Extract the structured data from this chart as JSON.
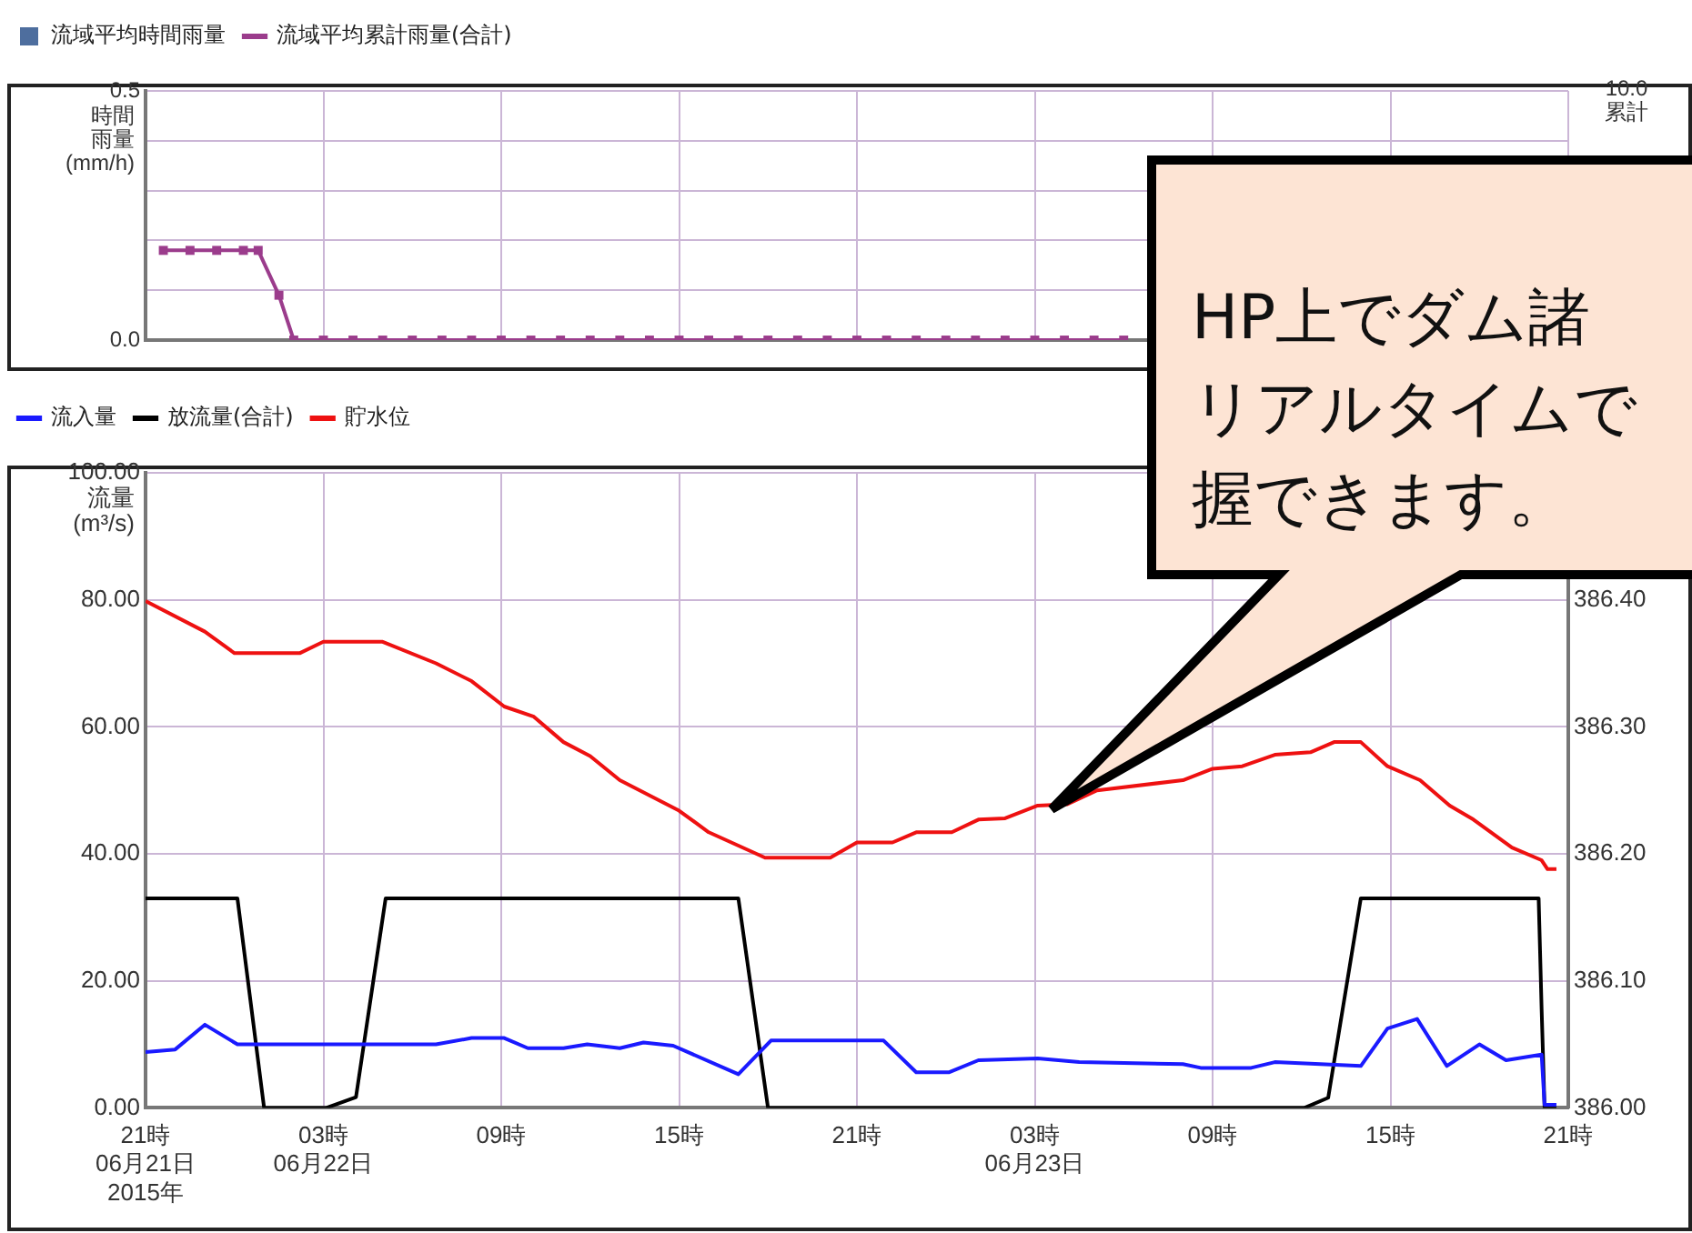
{
  "chart_data": [
    {
      "type": "line",
      "ylabel": "時間雨量(mm/h)",
      "legend": "top left",
      "grid": true,
      "tick_labels": "y",
      "marker": "square",
      "line_style": "solid",
      "annotations": [
        "10.0",
        "累計"
      ],
      "xlim": [
        "2015-06-21T21:00",
        "2015-06-23T21:00"
      ],
      "xticks": [
        {
          "value": "2015-06-21T21:00",
          "label": null
        },
        {
          "value": "2015-06-22T03:00",
          "label": null
        },
        {
          "value": "2015-06-22T09:00",
          "label": null
        },
        {
          "value": "2015-06-22T15:00",
          "label": null
        },
        {
          "value": "2015-06-22T21:00",
          "label": null
        },
        {
          "value": "2015-06-23T03:00",
          "label": null
        },
        {
          "value": "2015-06-23T09:00",
          "label": null
        },
        {
          "value": "2015-06-23T15:00",
          "label": null
        },
        {
          "value": "2015-06-23T21:00",
          "label": null
        }
      ],
      "ylim": [
        0,
        0.5
      ],
      "yticks": [
        {
          "value": 0,
          "label": "0.0"
        },
        {
          "value": 0.1,
          "label": null
        },
        {
          "value": 0.2,
          "label": null
        },
        {
          "value": 0.3,
          "label": null
        },
        {
          "value": 0.4,
          "label": null
        },
        {
          "value": 0.5,
          "label": "0.5"
        }
      ],
      "series": [
        {
          "name": "流域平均時間雨量",
          "type": "bar",
          "color": "#4e6e9e"
        },
        {
          "name": "流域平均累計雨量(合計)",
          "color": "#9b3c8c",
          "x": [
            "2015-06-21T21:36",
            "2015-06-21T22:30",
            "2015-06-21T23:24",
            "2015-06-22T00:18",
            "2015-06-22T00:48",
            "2015-06-22T01:30",
            "2015-06-22T02:00",
            "2015-06-22T03:00",
            "2015-06-22T04:00",
            "2015-06-22T05:00",
            "2015-06-22T06:00",
            "2015-06-22T07:00",
            "2015-06-22T08:00",
            "2015-06-22T09:00",
            "2015-06-22T10:00",
            "2015-06-22T11:00",
            "2015-06-22T12:00",
            "2015-06-22T13:00",
            "2015-06-22T14:00",
            "2015-06-22T15:00",
            "2015-06-22T16:00",
            "2015-06-22T17:00",
            "2015-06-22T18:00",
            "2015-06-22T19:00",
            "2015-06-22T20:00",
            "2015-06-22T21:00",
            "2015-06-22T22:00",
            "2015-06-22T23:00",
            "2015-06-23T00:00",
            "2015-06-23T01:00",
            "2015-06-23T02:00",
            "2015-06-23T03:00",
            "2015-06-23T04:00",
            "2015-06-23T05:00",
            "2015-06-23T06:00"
          ],
          "values": [
            0.18,
            0.18,
            0.18,
            0.18,
            0.18,
            0.09,
            0,
            0,
            0,
            0,
            0,
            0,
            0,
            0,
            0,
            0,
            0,
            0,
            0,
            0,
            0,
            0,
            0,
            0,
            0,
            0,
            0,
            0,
            0,
            0,
            0,
            0,
            0,
            0,
            0
          ]
        }
      ]
    },
    {
      "type": "line",
      "ylabel": "流量(m³/s)",
      "legend": "top left",
      "grid": true,
      "marker": "none",
      "line_style": "solid",
      "xlim": [
        "2015-06-21T21:00",
        "2015-06-23T21:00"
      ],
      "xticks": [
        {
          "value": "2015-06-21T21:00",
          "label": "21時\n06月21日\n2015年"
        },
        {
          "value": "2015-06-22T03:00",
          "label": "03時\n06月22日"
        },
        {
          "value": "2015-06-22T09:00",
          "label": "09時"
        },
        {
          "value": "2015-06-22T15:00",
          "label": "15時"
        },
        {
          "value": "2015-06-22T21:00",
          "label": "21時"
        },
        {
          "value": "2015-06-23T03:00",
          "label": "03時\n06月23日"
        },
        {
          "value": "2015-06-23T09:00",
          "label": "09時"
        },
        {
          "value": "2015-06-23T15:00",
          "label": "15時"
        },
        {
          "value": "2015-06-23T21:00",
          "label": "21時"
        }
      ],
      "ylim": [
        0,
        100
      ],
      "yticks": [
        {
          "value": 0,
          "label": "0.00"
        },
        {
          "value": 20,
          "label": "20.00"
        },
        {
          "value": 40,
          "label": "40.00"
        },
        {
          "value": 60,
          "label": "60.00"
        },
        {
          "value": 80,
          "label": "80.00"
        },
        {
          "value": 100,
          "label": "100.00"
        }
      ],
      "y2lim": [
        386.0,
        386.5
      ],
      "y2ticks": [
        {
          "value": 386.0,
          "label": "386.00"
        },
        {
          "value": 386.1,
          "label": "386.10"
        },
        {
          "value": 386.2,
          "label": "386.20"
        },
        {
          "value": 386.3,
          "label": "386.30"
        },
        {
          "value": 386.4,
          "label": "386.40"
        },
        {
          "value": 386.5,
          "label": null
        }
      ],
      "annotations": [
        "HP上でダム諸",
        "リアルタイムで",
        "握できます。"
      ],
      "series": [
        {
          "name": "流入量",
          "color": "#1a1aff",
          "x": [
            "2015-06-21T21:00",
            "2015-06-21T22:00",
            "2015-06-21T23:00",
            "2015-06-22T00:06",
            "2015-06-22T06:48",
            "2015-06-22T08:00",
            "2015-06-22T09:06",
            "2015-06-22T09:54",
            "2015-06-22T11:06",
            "2015-06-22T11:54",
            "2015-06-22T13:00",
            "2015-06-22T13:48",
            "2015-06-22T14:48",
            "2015-06-22T17:00",
            "2015-06-22T18:06",
            "2015-06-22T20:18",
            "2015-06-22T21:54",
            "2015-06-22T23:00",
            "2015-06-23T00:06",
            "2015-06-23T01:06",
            "2015-06-23T03:06",
            "2015-06-23T04:30",
            "2015-06-23T08:00",
            "2015-06-23T08:36",
            "2015-06-23T10:18",
            "2015-06-23T11:06",
            "2015-06-23T14:00",
            "2015-06-23T14:54",
            "2015-06-23T15:54",
            "2015-06-23T16:54",
            "2015-06-23T18:00",
            "2015-06-23T18:54",
            "2015-06-23T20:06",
            "2015-06-23T20:12",
            "2015-06-23T20:36"
          ],
          "values": [
            8.8,
            9.2,
            13.1,
            10,
            10,
            11,
            11,
            9.4,
            9.4,
            10,
            9.4,
            10.3,
            9.8,
            5.3,
            10.6,
            10.6,
            10.6,
            5.6,
            5.6,
            7.5,
            7.8,
            7.2,
            6.9,
            6.3,
            6.3,
            7.2,
            6.6,
            12.5,
            14,
            6.6,
            10,
            7.5,
            8.4,
            0.5,
            0.5
          ]
        },
        {
          "name": "放流量(合計)",
          "color": "#000000",
          "x": [
            "2015-06-21T21:00",
            "2015-06-22T00:06",
            "2015-06-22T01:00",
            "2015-06-22T03:06",
            "2015-06-22T04:06",
            "2015-06-22T05:06",
            "2015-06-22T17:00",
            "2015-06-22T18:00",
            "2015-06-23T12:06",
            "2015-06-23T12:54",
            "2015-06-23T14:00",
            "2015-06-23T20:00",
            "2015-06-23T20:06",
            "2015-06-23T20:12",
            "2015-06-23T20:36"
          ],
          "values": [
            33,
            33,
            0,
            0,
            1.7,
            33,
            33,
            0,
            0,
            1.6,
            33,
            33,
            15.6,
            0,
            0
          ]
        },
        {
          "name": "貯水位",
          "color": "#ee1111",
          "axis": "y2",
          "x": [
            "2015-06-21T21:00",
            "2015-06-21T23:00",
            "2015-06-22T00:00",
            "2015-06-22T02:12",
            "2015-06-22T03:00",
            "2015-06-22T05:00",
            "2015-06-22T06:48",
            "2015-06-22T08:00",
            "2015-06-22T09:06",
            "2015-06-22T10:06",
            "2015-06-22T11:06",
            "2015-06-22T12:00",
            "2015-06-22T13:00",
            "2015-06-22T15:00",
            "2015-06-22T16:00",
            "2015-06-22T17:54",
            "2015-06-22T20:06",
            "2015-06-22T21:00",
            "2015-06-22T22:12",
            "2015-06-22T23:00",
            "2015-06-23T00:12",
            "2015-06-23T01:06",
            "2015-06-23T02:00",
            "2015-06-23T03:06",
            "2015-06-23T04:06",
            "2015-06-23T05:06",
            "2015-06-23T08:00",
            "2015-06-23T09:00",
            "2015-06-23T10:00",
            "2015-06-23T11:06",
            "2015-06-23T12:18",
            "2015-06-23T13:06",
            "2015-06-23T14:00",
            "2015-06-23T14:54",
            "2015-06-23T16:00",
            "2015-06-23T17:00",
            "2015-06-23T17:48",
            "2015-06-23T19:06",
            "2015-06-23T20:06",
            "2015-06-23T20:18",
            "2015-06-23T20:36"
          ],
          "values": [
            386.399,
            386.375,
            386.358,
            386.358,
            386.367,
            386.367,
            386.35,
            386.336,
            386.316,
            386.308,
            386.288,
            386.277,
            386.258,
            386.234,
            386.217,
            386.197,
            386.197,
            386.209,
            386.209,
            386.217,
            386.217,
            386.227,
            386.228,
            386.238,
            386.239,
            386.25,
            386.258,
            386.267,
            386.269,
            386.278,
            386.28,
            386.288,
            386.288,
            386.269,
            386.258,
            386.238,
            386.227,
            386.205,
            386.195,
            386.188,
            386.188
          ]
        }
      ]
    }
  ]
}
